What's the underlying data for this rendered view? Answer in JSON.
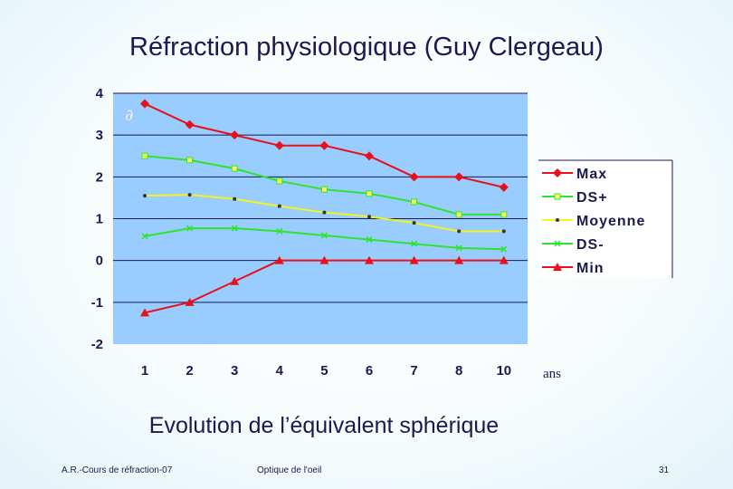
{
  "slide": {
    "title": "Réfraction physiologique (Guy Clergeau)",
    "subtitle": "Evolution de l’équivalent sphérique",
    "footer_left": "A.R.-Cours de réfraction-07",
    "footer_center": "Optique de l'oeil",
    "footer_right": "31"
  },
  "chart_data": {
    "type": "line",
    "title": "",
    "xlabel": "ans",
    "ylabel": "∂",
    "categories": [
      "1",
      "2",
      "3",
      "4",
      "5",
      "6",
      "7",
      "8",
      "10"
    ],
    "y_ticks": [
      4,
      3,
      2,
      1,
      0,
      -1,
      -2
    ],
    "ylim": [
      -2,
      4
    ],
    "grid": true,
    "legend_position": "right",
    "plot_background": "#99ccff",
    "series": [
      {
        "name": "Max",
        "values": [
          3.75,
          3.25,
          3.0,
          2.75,
          2.75,
          2.5,
          2.0,
          2.0,
          1.75
        ],
        "color": "#e8101a",
        "marker": "diamond"
      },
      {
        "name": "DS+",
        "values": [
          2.5,
          2.4,
          2.2,
          1.9,
          1.7,
          1.6,
          1.4,
          1.1,
          1.1
        ],
        "color": "#2ee42e",
        "marker": "square"
      },
      {
        "name": "Moyenne",
        "values": [
          1.55,
          1.57,
          1.47,
          1.3,
          1.15,
          1.05,
          0.9,
          0.7,
          0.7
        ],
        "color": "#f4f41a",
        "marker": "dot"
      },
      {
        "name": "DS-",
        "values": [
          0.58,
          0.77,
          0.77,
          0.7,
          0.6,
          0.5,
          0.4,
          0.3,
          0.27
        ],
        "color": "#2ee42e",
        "marker": "x"
      },
      {
        "name": "Min",
        "values": [
          -1.25,
          -1.0,
          -0.5,
          0.0,
          0.0,
          0.0,
          0.0,
          0.0,
          0.0
        ],
        "color": "#e8101a",
        "marker": "triangle"
      }
    ]
  }
}
